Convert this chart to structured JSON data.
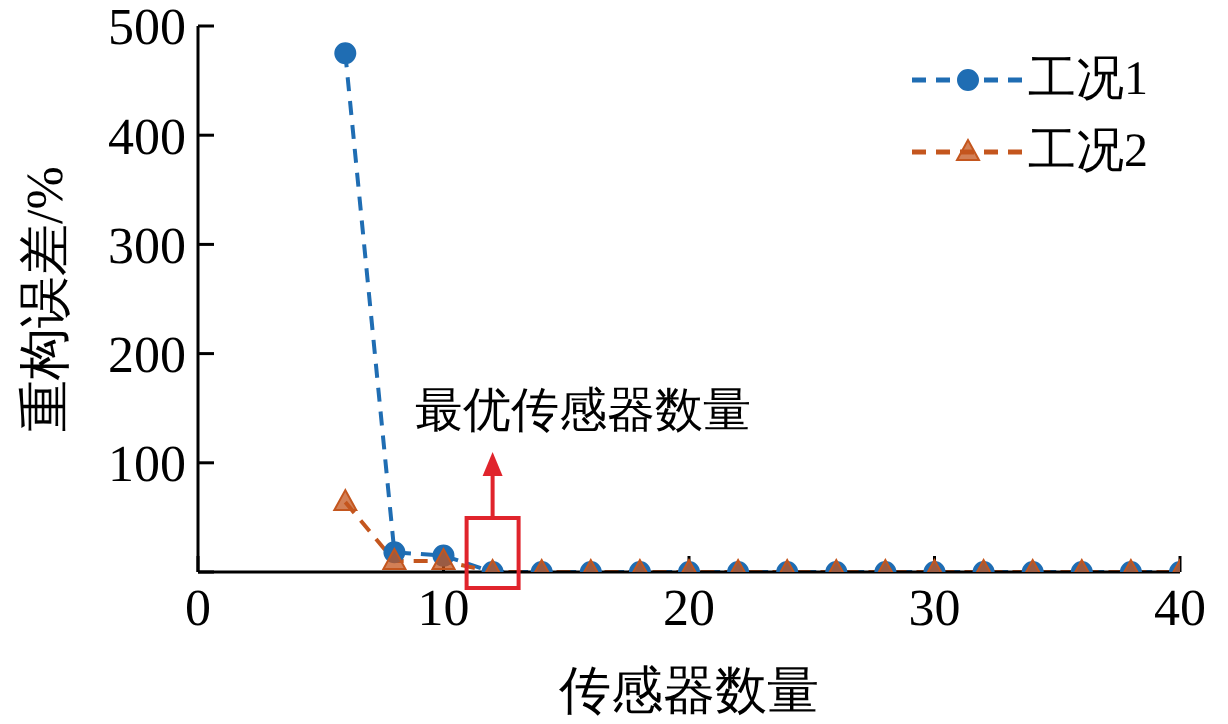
{
  "chart_data": {
    "type": "line",
    "xlabel": "传感器数量",
    "ylabel": "重构误差/%",
    "x": [
      6,
      8,
      10,
      12,
      14,
      16,
      18,
      20,
      22,
      24,
      26,
      28,
      30,
      32,
      34,
      36,
      38,
      40
    ],
    "series": [
      {
        "name": "工况1",
        "color": "#1f6db3",
        "marker": "circle",
        "line_style": "dashed",
        "values": [
          475,
          18,
          15,
          0,
          0,
          0,
          0,
          0,
          0,
          0,
          0,
          0,
          0,
          0,
          0,
          0,
          0,
          0
        ]
      },
      {
        "name": "工况2",
        "color": "#c4561e",
        "marker": "triangle",
        "line_style": "dashed",
        "values": [
          64,
          10,
          10,
          0,
          0,
          0,
          0,
          0,
          0,
          0,
          0,
          0,
          0,
          0,
          0,
          0,
          0,
          0
        ]
      }
    ],
    "xlim": [
      0,
      40
    ],
    "xticks": [
      0,
      10,
      20,
      30,
      40
    ],
    "ylim": [
      0,
      500
    ],
    "yticks": [
      {
        "value": 0,
        "label": null
      },
      100,
      200,
      300,
      400,
      500
    ],
    "grid": false,
    "legend": "top right",
    "annotations": [
      {
        "text": "最优传感器数量",
        "x": 12,
        "y": 0
      }
    ]
  }
}
